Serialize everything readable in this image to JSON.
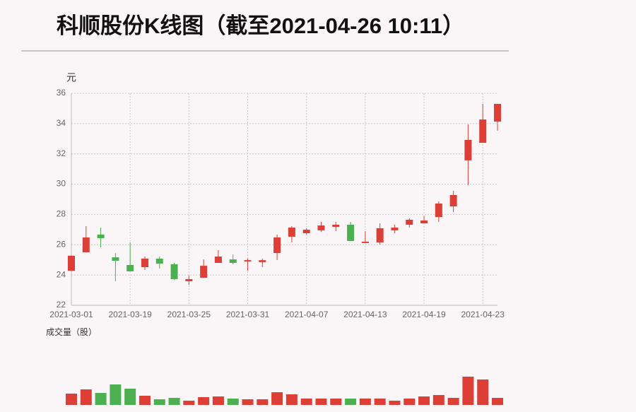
{
  "chart_data": {
    "type": "candlestick",
    "title": "科顺股份K线图（截至2021-04-26 10:11）",
    "y_axis_label": "元",
    "volume_label": "成交量（股）",
    "categories": [
      "2021-03-01",
      null,
      null,
      null,
      "2021-03-19",
      null,
      null,
      null,
      "2021-03-25",
      null,
      null,
      null,
      "2021-03-31",
      null,
      null,
      null,
      "2021-04-07",
      null,
      null,
      null,
      "2021-04-13",
      null,
      null,
      null,
      "2021-04-19",
      null,
      null,
      null,
      "2021-04-23",
      null
    ],
    "open": [
      24.28,
      25.5,
      26.67,
      25.17,
      24.66,
      24.52,
      25.08,
      24.71,
      23.59,
      23.82,
      24.8,
      25.03,
      24.89,
      24.85,
      25.45,
      26.53,
      26.76,
      26.95,
      27.18,
      27.32,
      26.11,
      26.15,
      26.95,
      27.32,
      27.41,
      27.83,
      28.53,
      31.57,
      32.73,
      34.13
    ],
    "high": [
      25.3,
      27.23,
      27.13,
      25.45,
      26.15,
      25.22,
      25.22,
      24.8,
      23.96,
      25.03,
      25.64,
      25.36,
      25.08,
      25.08,
      26.67,
      27.23,
      27.09,
      27.51,
      27.51,
      27.51,
      26.9,
      27.41,
      27.32,
      27.74,
      27.88,
      28.86,
      29.56,
      33.95,
      35.3,
      35.3
    ],
    "low": [
      24.25,
      25.5,
      25.83,
      23.59,
      24.24,
      24.33,
      24.43,
      23.68,
      23.35,
      23.82,
      24.8,
      24.71,
      24.29,
      24.52,
      24.99,
      26.15,
      26.67,
      26.85,
      26.9,
      26.25,
      26.11,
      26.01,
      26.76,
      27.13,
      27.41,
      27.51,
      28.16,
      29.93,
      32.73,
      33.53
    ],
    "close": [
      25.27,
      26.48,
      26.43,
      24.94,
      24.24,
      25.08,
      24.75,
      23.73,
      23.73,
      24.61,
      25.22,
      24.8,
      24.98,
      24.98,
      26.48,
      27.13,
      26.99,
      27.27,
      27.32,
      26.25,
      26.2,
      27.09,
      27.13,
      27.65,
      27.6,
      28.72,
      29.28,
      32.92,
      34.27,
      35.3
    ],
    "volume": [
      16,
      22,
      17,
      29,
      23,
      13,
      8,
      10,
      6,
      11,
      12,
      9,
      8,
      8,
      18,
      15,
      9,
      9,
      9,
      9,
      9,
      9,
      6,
      9,
      12,
      14,
      10,
      40,
      36,
      10
    ],
    "up_color": "#dd3f37",
    "down_color": "#4caf50",
    "ylim": [
      22,
      36
    ],
    "yticks": [
      22,
      24,
      26,
      28,
      30,
      32,
      34,
      36
    ],
    "grid": true
  }
}
